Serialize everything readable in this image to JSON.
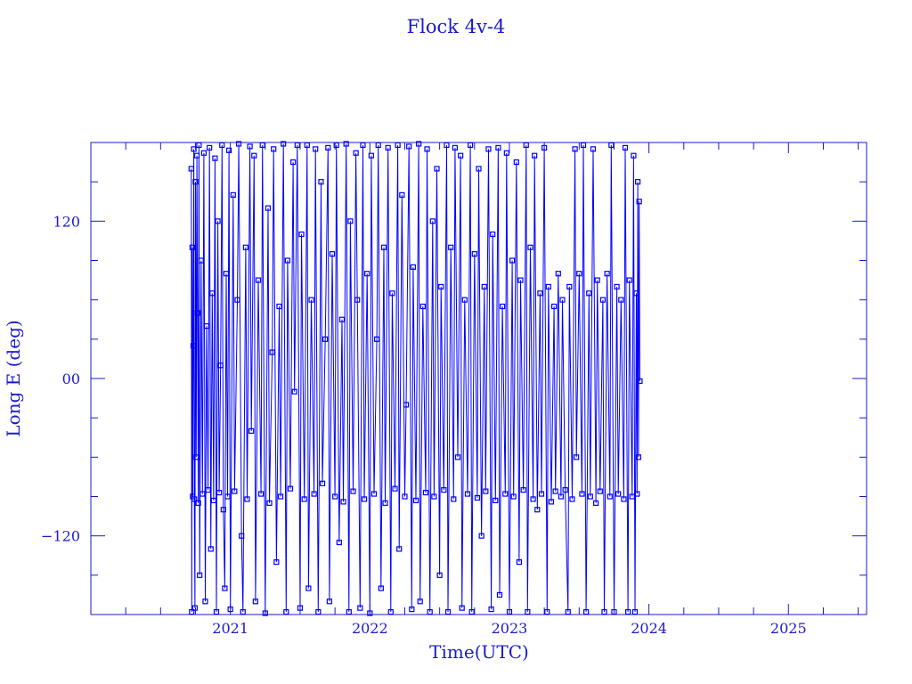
{
  "chart_data": {
    "type": "line",
    "title": "Flock 4v-4",
    "xlabel": "Time(UTC)",
    "ylabel": "Long E (deg)",
    "xlim": [
      2020.0,
      2025.56
    ],
    "ylim": [
      -180,
      180
    ],
    "xticks": [
      2021,
      2022,
      2023,
      2024,
      2025
    ],
    "xtick_labels": [
      "2021",
      "2022",
      "2023",
      "2024",
      "2025"
    ],
    "yticks": [
      120,
      0,
      -120
    ],
    "ytick_labels": [
      "120",
      "00",
      "−120"
    ],
    "grid": false,
    "marker": "open-square",
    "colors": {
      "series": "#0000ff",
      "axes": "#1a1acc"
    },
    "series": [
      {
        "points": [
          [
            2020.72,
            160
          ],
          [
            2020.723,
            -178
          ],
          [
            2020.727,
            100
          ],
          [
            2020.73,
            -90
          ],
          [
            2020.734,
            25
          ],
          [
            2020.738,
            175
          ],
          [
            2020.742,
            -92
          ],
          [
            2020.746,
            -175
          ],
          [
            2020.75,
            150
          ],
          [
            2020.755,
            -60
          ],
          [
            2020.76,
            170
          ],
          [
            2020.765,
            50
          ],
          [
            2020.77,
            -95
          ],
          [
            2020.775,
            178
          ],
          [
            2020.78,
            -150
          ],
          [
            2020.79,
            90
          ],
          [
            2020.8,
            -88
          ],
          [
            2020.81,
            172
          ],
          [
            2020.82,
            -170
          ],
          [
            2020.83,
            40
          ],
          [
            2020.84,
            -85
          ],
          [
            2020.85,
            176
          ],
          [
            2020.86,
            -130
          ],
          [
            2020.87,
            65
          ],
          [
            2020.88,
            -93
          ],
          [
            2020.89,
            168
          ],
          [
            2020.9,
            -178
          ],
          [
            2020.91,
            120
          ],
          [
            2020.92,
            -87
          ],
          [
            2020.93,
            10
          ],
          [
            2020.94,
            178
          ],
          [
            2020.95,
            -100
          ],
          [
            2020.96,
            -160
          ],
          [
            2020.97,
            80
          ],
          [
            2020.98,
            -90
          ],
          [
            2020.99,
            174
          ],
          [
            2021.0,
            -176
          ],
          [
            2021.02,
            140
          ],
          [
            2021.03,
            -86
          ],
          [
            2021.05,
            60
          ],
          [
            2021.06,
            179
          ],
          [
            2021.08,
            -120
          ],
          [
            2021.09,
            -178
          ],
          [
            2021.11,
            100
          ],
          [
            2021.12,
            -92
          ],
          [
            2021.14,
            177
          ],
          [
            2021.15,
            -40
          ],
          [
            2021.17,
            170
          ],
          [
            2021.18,
            -170
          ],
          [
            2021.2,
            75
          ],
          [
            2021.22,
            -88
          ],
          [
            2021.23,
            178
          ],
          [
            2021.25,
            -179
          ],
          [
            2021.27,
            130
          ],
          [
            2021.28,
            -95
          ],
          [
            2021.3,
            20
          ],
          [
            2021.31,
            175
          ],
          [
            2021.33,
            -140
          ],
          [
            2021.35,
            55
          ],
          [
            2021.36,
            -90
          ],
          [
            2021.38,
            179
          ],
          [
            2021.4,
            -178
          ],
          [
            2021.41,
            90
          ],
          [
            2021.43,
            -84
          ],
          [
            2021.45,
            165
          ],
          [
            2021.46,
            -10
          ],
          [
            2021.48,
            178
          ],
          [
            2021.5,
            -175
          ],
          [
            2021.51,
            110
          ],
          [
            2021.53,
            -92
          ],
          [
            2021.55,
            178
          ],
          [
            2021.56,
            -160
          ],
          [
            2021.58,
            60
          ],
          [
            2021.6,
            -88
          ],
          [
            2021.61,
            175
          ],
          [
            2021.63,
            -178
          ],
          [
            2021.65,
            150
          ],
          [
            2021.66,
            -80
          ],
          [
            2021.68,
            30
          ],
          [
            2021.7,
            176
          ],
          [
            2021.71,
            -170
          ],
          [
            2021.73,
            95
          ],
          [
            2021.75,
            -90
          ],
          [
            2021.76,
            178
          ],
          [
            2021.78,
            -125
          ],
          [
            2021.8,
            45
          ],
          [
            2021.81,
            -94
          ],
          [
            2021.83,
            179
          ],
          [
            2021.85,
            -178
          ],
          [
            2021.86,
            120
          ],
          [
            2021.88,
            -86
          ],
          [
            2021.9,
            172
          ],
          [
            2021.91,
            60
          ],
          [
            2021.93,
            -175
          ],
          [
            2021.95,
            178
          ],
          [
            2021.96,
            -92
          ],
          [
            2021.98,
            80
          ],
          [
            2022.0,
            -179
          ],
          [
            2022.01,
            170
          ],
          [
            2022.03,
            -88
          ],
          [
            2022.05,
            30
          ],
          [
            2022.06,
            178
          ],
          [
            2022.08,
            -160
          ],
          [
            2022.1,
            100
          ],
          [
            2022.11,
            -95
          ],
          [
            2022.13,
            176
          ],
          [
            2022.15,
            -178
          ],
          [
            2022.16,
            65
          ],
          [
            2022.18,
            -84
          ],
          [
            2022.2,
            178
          ],
          [
            2022.21,
            -130
          ],
          [
            2022.23,
            140
          ],
          [
            2022.25,
            -90
          ],
          [
            2022.26,
            -20
          ],
          [
            2022.28,
            177
          ],
          [
            2022.3,
            -176
          ],
          [
            2022.31,
            85
          ],
          [
            2022.33,
            -93
          ],
          [
            2022.35,
            179
          ],
          [
            2022.36,
            -170
          ],
          [
            2022.38,
            55
          ],
          [
            2022.4,
            -87
          ],
          [
            2022.41,
            175
          ],
          [
            2022.43,
            -178
          ],
          [
            2022.45,
            120
          ],
          [
            2022.46,
            -90
          ],
          [
            2022.48,
            160
          ],
          [
            2022.5,
            -150
          ],
          [
            2022.51,
            70
          ],
          [
            2022.53,
            -85
          ],
          [
            2022.55,
            178
          ],
          [
            2022.56,
            -178
          ],
          [
            2022.58,
            100
          ],
          [
            2022.6,
            -92
          ],
          [
            2022.61,
            176
          ],
          [
            2022.63,
            -60
          ],
          [
            2022.65,
            170
          ],
          [
            2022.66,
            -175
          ],
          [
            2022.68,
            60
          ],
          [
            2022.7,
            -88
          ],
          [
            2022.72,
            178
          ],
          [
            2022.73,
            -178
          ],
          [
            2022.75,
            95
          ],
          [
            2022.77,
            -91
          ],
          [
            2022.78,
            160
          ],
          [
            2022.8,
            -120
          ],
          [
            2022.82,
            70
          ],
          [
            2022.83,
            -86
          ],
          [
            2022.85,
            175
          ],
          [
            2022.87,
            -176
          ],
          [
            2022.88,
            110
          ],
          [
            2022.9,
            -93
          ],
          [
            2022.92,
            176
          ],
          [
            2022.93,
            -165
          ],
          [
            2022.95,
            55
          ],
          [
            2022.97,
            -88
          ],
          [
            2022.98,
            172
          ],
          [
            2023.0,
            -178
          ],
          [
            2023.02,
            90
          ],
          [
            2023.03,
            -90
          ],
          [
            2023.05,
            165
          ],
          [
            2023.07,
            -140
          ],
          [
            2023.08,
            75
          ],
          [
            2023.1,
            -85
          ],
          [
            2023.12,
            178
          ],
          [
            2023.13,
            -178
          ],
          [
            2023.15,
            100
          ],
          [
            2023.17,
            -92
          ],
          [
            2023.18,
            170
          ],
          [
            2023.2,
            -100
          ],
          [
            2023.22,
            65
          ],
          [
            2023.23,
            -88
          ],
          [
            2023.25,
            176
          ],
          [
            2023.27,
            -178
          ],
          [
            2023.28,
            70
          ],
          [
            2023.3,
            -94
          ],
          [
            2023.32,
            55
          ],
          [
            2023.33,
            -86
          ],
          [
            2023.35,
            80
          ],
          [
            2023.37,
            -90
          ],
          [
            2023.38,
            60
          ],
          [
            2023.4,
            -85
          ],
          [
            2023.42,
            -178
          ],
          [
            2023.43,
            70
          ],
          [
            2023.45,
            -92
          ],
          [
            2023.47,
            175
          ],
          [
            2023.48,
            -60
          ],
          [
            2023.5,
            80
          ],
          [
            2023.52,
            -88
          ],
          [
            2023.53,
            178
          ],
          [
            2023.55,
            -178
          ],
          [
            2023.57,
            65
          ],
          [
            2023.58,
            -90
          ],
          [
            2023.6,
            175
          ],
          [
            2023.62,
            -95
          ],
          [
            2023.63,
            75
          ],
          [
            2023.65,
            -86
          ],
          [
            2023.67,
            60
          ],
          [
            2023.68,
            -178
          ],
          [
            2023.7,
            80
          ],
          [
            2023.72,
            -90
          ],
          [
            2023.73,
            178
          ],
          [
            2023.75,
            -178
          ],
          [
            2023.77,
            70
          ],
          [
            2023.78,
            -88
          ],
          [
            2023.8,
            60
          ],
          [
            2023.82,
            -92
          ],
          [
            2023.83,
            176
          ],
          [
            2023.85,
            -178
          ],
          [
            2023.86,
            75
          ],
          [
            2023.88,
            -90
          ],
          [
            2023.89,
            170
          ],
          [
            2023.9,
            -178
          ],
          [
            2023.91,
            65
          ],
          [
            2023.915,
            -88
          ],
          [
            2023.92,
            150
          ],
          [
            2023.925,
            -60
          ],
          [
            2023.93,
            135
          ],
          [
            2023.935,
            -2
          ]
        ]
      }
    ]
  }
}
